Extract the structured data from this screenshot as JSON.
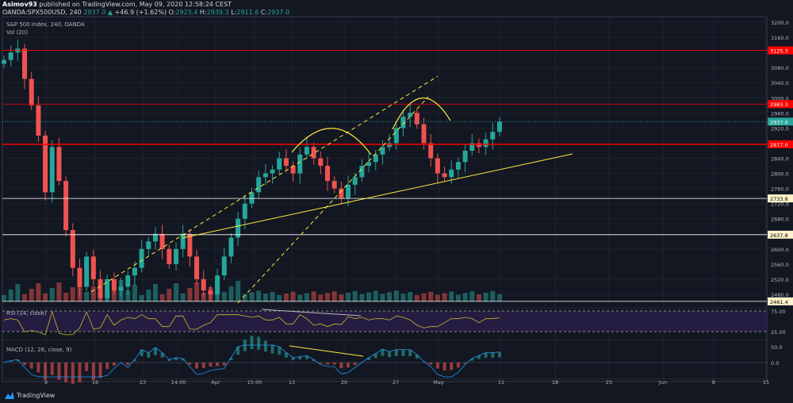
{
  "header": {
    "author": "Asimov93",
    "published": "published on TradingView.com, May 09, 2020 12:58:24 CEST",
    "symbol": "OANDA:SPX500USD, 240",
    "last": "2937.0",
    "change": "+46.9 (+1.62%)",
    "o": "2923.4",
    "h": "2939.3",
    "l": "2911.6",
    "c": "2937.0"
  },
  "legend": {
    "title": "S&P 500 index, 240, OANDA",
    "vol": "Vol (20)"
  },
  "rsi": {
    "label": "RSI (14, close)",
    "ticks": [
      "75.00",
      "25.00"
    ]
  },
  "macd": {
    "label": "MACD (12, 26, close, 9)",
    "ticks": [
      "50.0",
      "0.0"
    ]
  },
  "footer": {
    "brand": "TradingView"
  },
  "colors": {
    "up": "#26a69a",
    "down": "#ef5350",
    "level": "#ff0000",
    "support": "#fff3cc",
    "annotation": "#ffeb3b"
  },
  "chart_data": {
    "type": "candlestick",
    "title": "S&P 500 index, 240, OANDA",
    "ylim": [
      2461,
      3200
    ],
    "y_ticks": [
      3200,
      3160,
      3080,
      3040,
      3000,
      2960,
      2920,
      2840,
      2800,
      2760,
      2720,
      2680,
      2600,
      2560,
      2520,
      2480
    ],
    "x_ticks": [
      "9",
      "16",
      "23",
      "14:00",
      "Apr",
      "15:00",
      "13",
      "20",
      "27",
      "May",
      "11",
      "18",
      "25",
      "Jun",
      "8",
      "15"
    ],
    "price_levels": [
      {
        "value": 3125.3,
        "label": "3125.3",
        "kind": "resistance"
      },
      {
        "value": 2983.3,
        "label": "2983.3",
        "kind": "resistance"
      },
      {
        "value": 2877.0,
        "label": "2877.0",
        "kind": "resistance"
      },
      {
        "value": 2733.8,
        "label": "2733.8",
        "kind": "support"
      },
      {
        "value": 2637.8,
        "label": "2637.8",
        "kind": "support"
      },
      {
        "value": 2461.4,
        "label": "2461.4",
        "kind": "support"
      }
    ],
    "last_price": {
      "value": 2937.0,
      "label": "2937.0"
    },
    "closes": [
      3100,
      3120,
      3130,
      3050,
      2980,
      2900,
      2750,
      2870,
      2780,
      2650,
      2550,
      2500,
      2580,
      2520,
      2470,
      2520,
      2490,
      2500,
      2530,
      2550,
      2600,
      2620,
      2640,
      2600,
      2560,
      2600,
      2640,
      2580,
      2520,
      2490,
      2480,
      2530,
      2580,
      2630,
      2680,
      2720,
      2750,
      2790,
      2800,
      2810,
      2840,
      2820,
      2800,
      2850,
      2870,
      2840,
      2820,
      2780,
      2760,
      2735,
      2770,
      2790,
      2820,
      2830,
      2850,
      2870,
      2880,
      2920,
      2950,
      2960,
      2930,
      2880,
      2840,
      2800,
      2790,
      2810,
      2830,
      2860,
      2880,
      2870,
      2890,
      2910,
      2937
    ]
  }
}
